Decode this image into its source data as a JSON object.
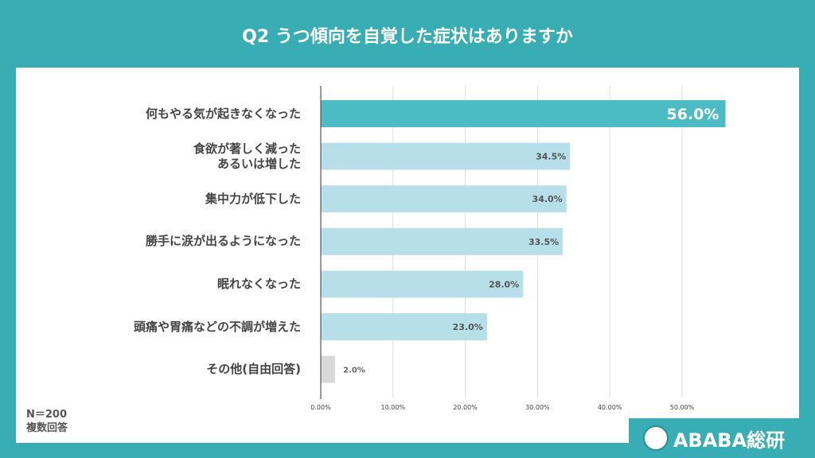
{
  "title": "Q2 うつ傾向を自覚した症状はありますか",
  "note": {
    "n": "N＝200",
    "type": "複数回答"
  },
  "logo": {
    "text": "ABABA総研"
  },
  "colors": {
    "background": "#38adb3",
    "highlight": "#4bbcc4",
    "bar": "#b7dfe9",
    "other": "#d9d9d9"
  },
  "chart_data": {
    "type": "bar",
    "orientation": "horizontal",
    "categories": [
      "何もやる気が起きなくなった",
      "食欲が著しく減った\nあるいは増した",
      "集中力が低下した",
      "勝手に涙が出るようになった",
      "眠れなくなった",
      "頭痛や胃痛などの不調が増えた",
      "その他(自由回答)"
    ],
    "values": [
      56.0,
      34.5,
      34.0,
      33.5,
      28.0,
      23.0,
      2.0
    ],
    "data_labels": [
      "56.0%",
      "34.5%",
      "34.0%",
      "33.5%",
      "28.0%",
      "23.0%",
      "2.0%"
    ],
    "xticks": [
      "0.00%",
      "10.00%",
      "20.00%",
      "30.00%",
      "40.00%",
      "50.00%"
    ],
    "xlim": [
      0,
      60
    ],
    "grid": true
  }
}
